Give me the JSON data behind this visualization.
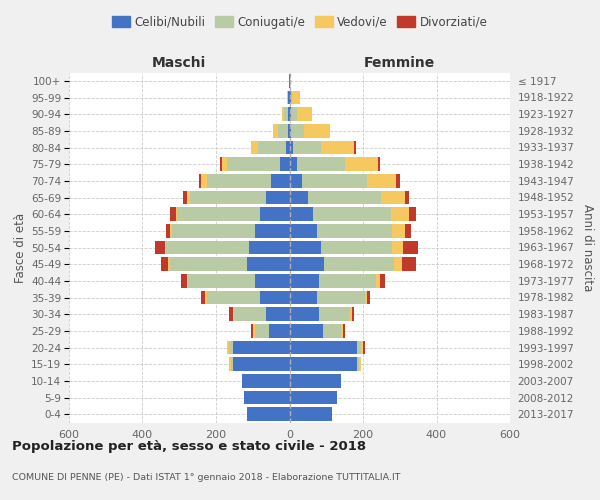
{
  "age_groups_bottom_to_top": [
    "0-4",
    "5-9",
    "10-14",
    "15-19",
    "20-24",
    "25-29",
    "30-34",
    "35-39",
    "40-44",
    "45-49",
    "50-54",
    "55-59",
    "60-64",
    "65-69",
    "70-74",
    "75-79",
    "80-84",
    "85-89",
    "90-94",
    "95-99",
    "100+"
  ],
  "birth_years_bottom_to_top": [
    "2013-2017",
    "2008-2012",
    "2003-2007",
    "1998-2002",
    "1993-1997",
    "1988-1992",
    "1983-1987",
    "1978-1982",
    "1973-1977",
    "1968-1972",
    "1963-1967",
    "1958-1962",
    "1953-1957",
    "1948-1952",
    "1943-1947",
    "1938-1942",
    "1933-1937",
    "1928-1932",
    "1923-1927",
    "1918-1922",
    "≤ 1917"
  ],
  "male_celibe": [
    115,
    125,
    130,
    155,
    155,
    55,
    65,
    80,
    95,
    115,
    110,
    95,
    80,
    65,
    50,
    25,
    10,
    5,
    5,
    3,
    2
  ],
  "male_coniugato": [
    0,
    0,
    0,
    5,
    10,
    40,
    85,
    145,
    180,
    210,
    225,
    225,
    225,
    205,
    175,
    145,
    75,
    25,
    10,
    2,
    0
  ],
  "male_vedovo": [
    0,
    0,
    0,
    5,
    5,
    5,
    5,
    5,
    5,
    5,
    5,
    5,
    5,
    10,
    15,
    15,
    20,
    15,
    5,
    2,
    0
  ],
  "male_divorziato": [
    0,
    0,
    0,
    0,
    0,
    5,
    10,
    10,
    15,
    20,
    25,
    10,
    15,
    10,
    5,
    5,
    0,
    0,
    0,
    0,
    0
  ],
  "female_celibe": [
    115,
    130,
    140,
    185,
    185,
    90,
    80,
    75,
    80,
    95,
    85,
    75,
    65,
    50,
    35,
    20,
    10,
    5,
    5,
    3,
    2
  ],
  "female_coniugato": [
    0,
    0,
    0,
    5,
    10,
    50,
    85,
    130,
    155,
    190,
    195,
    205,
    210,
    200,
    175,
    130,
    75,
    35,
    15,
    5,
    0
  ],
  "female_vedovo": [
    0,
    0,
    0,
    5,
    5,
    5,
    5,
    5,
    10,
    20,
    30,
    35,
    50,
    65,
    80,
    90,
    90,
    70,
    40,
    20,
    0
  ],
  "female_divorziato": [
    0,
    0,
    0,
    0,
    5,
    5,
    5,
    10,
    15,
    40,
    40,
    15,
    20,
    10,
    10,
    5,
    5,
    0,
    0,
    0,
    0
  ],
  "color_celibe": "#4472c4",
  "color_coniugato": "#b8cba4",
  "color_vedovo": "#f5c860",
  "color_divorziato": "#c0392b",
  "title": "Popolazione per età, sesso e stato civile - 2018",
  "subtitle": "COMUNE DI PENNE (PE) - Dati ISTAT 1° gennaio 2018 - Elaborazione TUTTITALIA.IT",
  "xlabel_left": "Maschi",
  "xlabel_right": "Femmine",
  "ylabel_left": "Fasce di età",
  "ylabel_right": "Anni di nascita",
  "xlim": 600,
  "background_color": "#f0f0f0",
  "plot_bg": "#ffffff",
  "legend_labels": [
    "Celibi/Nubili",
    "Coniugati/e",
    "Vedovi/e",
    "Divorziati/e"
  ]
}
